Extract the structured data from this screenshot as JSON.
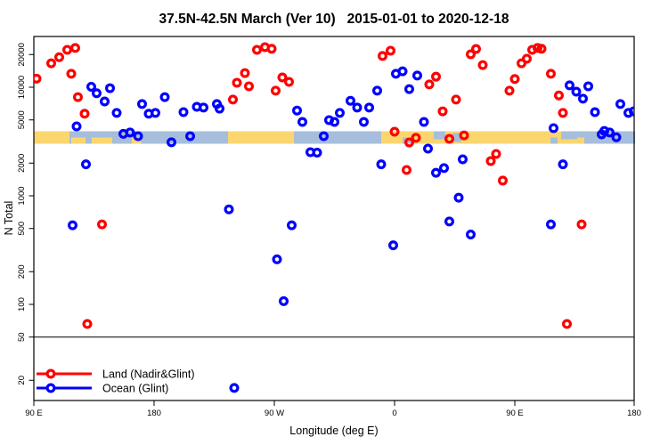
{
  "chart_data": {
    "type": "scatter",
    "title": "37.5N-42.5N March (Ver 10)   2015-01-01 to 2020-12-18",
    "xlabel": "Longitude (deg E)",
    "ylabel": "N Total",
    "x_axis": {
      "range": [
        90,
        540
      ],
      "ticks": [
        {
          "v": 90,
          "label": "90 E"
        },
        {
          "v": 180,
          "label": "180"
        },
        {
          "v": 270,
          "label": "90 W"
        },
        {
          "v": 360,
          "label": "0"
        },
        {
          "v": 450,
          "label": "90 E"
        },
        {
          "v": 540,
          "label": "180"
        }
      ]
    },
    "y_axis": {
      "scale": "log",
      "range": [
        13,
        29000
      ],
      "ticks": [
        20000,
        10000,
        5000,
        2000,
        1000,
        500,
        200,
        100,
        50,
        20
      ]
    },
    "threshold_line": {
      "n": 50,
      "color": "#000000"
    },
    "map_band": {
      "n_top": 3900,
      "n_bottom": 3000,
      "ocean_color": "#a6bedb",
      "land_color": "#fbd66f",
      "land_segments": [
        {
          "from": 90,
          "to": 116.7,
          "part": "full"
        },
        {
          "from": 118,
          "to": 128.7,
          "part": "bottom"
        },
        {
          "from": 133.3,
          "to": 148.7,
          "part": "bottom"
        },
        {
          "from": 163.3,
          "to": 170,
          "part": "bottom"
        },
        {
          "from": 235.3,
          "to": 284.7,
          "part": "full"
        },
        {
          "from": 350,
          "to": 496,
          "part": "full"
        },
        {
          "from": 496,
          "to": 502,
          "part": "bottom"
        }
      ],
      "sea_patches": [
        {
          "from": 366,
          "to": 372.7,
          "part": "bottom"
        },
        {
          "from": 389.3,
          "to": 398,
          "part": "top"
        },
        {
          "from": 403.3,
          "to": 410,
          "part": "mid"
        },
        {
          "from": 476.7,
          "to": 482,
          "part": "bottom"
        },
        {
          "from": 484.7,
          "to": 496.7,
          "part": "top"
        }
      ]
    },
    "legend": [
      {
        "label": "Land (Nadir&Glint)",
        "color": "#ff0000"
      },
      {
        "label": "Ocean (Glint)",
        "color": "#0000ff"
      }
    ],
    "series": [
      {
        "name": "Land (Nadir&Glint)",
        "color": "#ff0000",
        "points": [
          [
            92,
            12000
          ],
          [
            103,
            16600
          ],
          [
            109,
            18900
          ],
          [
            115,
            22100
          ],
          [
            121,
            23000
          ],
          [
            118,
            13300
          ],
          [
            123,
            8100
          ],
          [
            128,
            5700
          ],
          [
            141,
            545
          ],
          [
            130,
            66
          ],
          [
            239,
            7700
          ],
          [
            242,
            11000
          ],
          [
            248,
            13500
          ],
          [
            251,
            10200
          ],
          [
            257,
            22100
          ],
          [
            263,
            23400
          ],
          [
            268,
            22600
          ],
          [
            271,
            9300
          ],
          [
            276,
            12300
          ],
          [
            281,
            11200
          ],
          [
            351,
            19400
          ],
          [
            357,
            21700
          ],
          [
            360,
            3890
          ],
          [
            369,
            1730
          ],
          [
            371,
            3100
          ],
          [
            376,
            3420
          ],
          [
            386,
            10600
          ],
          [
            391,
            12500
          ],
          [
            396,
            6000
          ],
          [
            401,
            3350
          ],
          [
            406,
            7700
          ],
          [
            412,
            3600
          ],
          [
            417,
            20100
          ],
          [
            421,
            22500
          ],
          [
            426,
            16000
          ],
          [
            432,
            2090
          ],
          [
            436,
            2430
          ],
          [
            441,
            1380
          ],
          [
            446,
            9300
          ],
          [
            450,
            11900
          ],
          [
            455,
            16600
          ],
          [
            459,
            18300
          ],
          [
            463,
            22100
          ],
          [
            467,
            23000
          ],
          [
            470,
            22600
          ],
          [
            477,
            13300
          ],
          [
            483,
            8400
          ],
          [
            486,
            5800
          ],
          [
            489,
            66
          ],
          [
            500,
            545
          ]
        ]
      },
      {
        "name": "Ocean (Glint)",
        "color": "#0000ff",
        "points": [
          [
            133,
            10100
          ],
          [
            137,
            8800
          ],
          [
            143,
            7400
          ],
          [
            147,
            9800
          ],
          [
            152,
            5800
          ],
          [
            122,
            4360
          ],
          [
            129,
            1950
          ],
          [
            119,
            535
          ],
          [
            171,
            7000
          ],
          [
            176,
            5700
          ],
          [
            181,
            5800
          ],
          [
            188,
            8100
          ],
          [
            202,
            5900
          ],
          [
            212,
            6600
          ],
          [
            217,
            6500
          ],
          [
            227,
            7000
          ],
          [
            229,
            6350
          ],
          [
            287,
            6100
          ],
          [
            291,
            4790
          ],
          [
            311,
            4980
          ],
          [
            315,
            4790
          ],
          [
            157,
            3720
          ],
          [
            162,
            3830
          ],
          [
            168,
            3540
          ],
          [
            193,
            3110
          ],
          [
            207,
            3540
          ],
          [
            236,
            750
          ],
          [
            283,
            535
          ],
          [
            272,
            260
          ],
          [
            277,
            107
          ],
          [
            297,
            2520
          ],
          [
            302,
            2500
          ],
          [
            307,
            3540
          ],
          [
            240,
            17
          ],
          [
            319,
            5800
          ],
          [
            327,
            7500
          ],
          [
            332,
            6500
          ],
          [
            337,
            4790
          ],
          [
            341,
            6500
          ],
          [
            347,
            9300
          ],
          [
            361,
            13300
          ],
          [
            366,
            14000
          ],
          [
            371,
            9600
          ],
          [
            377,
            12800
          ],
          [
            382,
            4790
          ],
          [
            385,
            2720
          ],
          [
            350,
            1950
          ],
          [
            391,
            1630
          ],
          [
            397,
            1800
          ],
          [
            411,
            2170
          ],
          [
            408,
            960
          ],
          [
            401,
            580
          ],
          [
            417,
            440
          ],
          [
            359,
            350
          ],
          [
            477,
            545
          ],
          [
            486,
            1950
          ],
          [
            479,
            4200
          ],
          [
            491,
            10400
          ],
          [
            496,
            9100
          ],
          [
            501,
            7850
          ],
          [
            505,
            10200
          ],
          [
            510,
            5890
          ],
          [
            517,
            3960
          ],
          [
            529,
            7000
          ],
          [
            535,
            5800
          ],
          [
            539,
            6000
          ],
          [
            515,
            3680
          ],
          [
            521,
            3830
          ],
          [
            526,
            3460
          ]
        ]
      }
    ]
  }
}
